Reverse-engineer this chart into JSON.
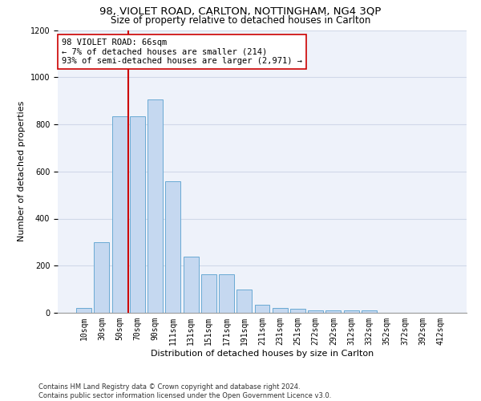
{
  "title1": "98, VIOLET ROAD, CARLTON, NOTTINGHAM, NG4 3QP",
  "title2": "Size of property relative to detached houses in Carlton",
  "xlabel": "Distribution of detached houses by size in Carlton",
  "ylabel": "Number of detached properties",
  "categories": [
    "10sqm",
    "30sqm",
    "50sqm",
    "70sqm",
    "90sqm",
    "111sqm",
    "131sqm",
    "151sqm",
    "171sqm",
    "191sqm",
    "211sqm",
    "231sqm",
    "251sqm",
    "272sqm",
    "292sqm",
    "312sqm",
    "332sqm",
    "352sqm",
    "372sqm",
    "392sqm",
    "412sqm"
  ],
  "values": [
    22,
    300,
    835,
    835,
    905,
    560,
    240,
    165,
    165,
    100,
    35,
    22,
    18,
    10,
    10,
    10,
    10,
    0,
    0,
    0,
    0
  ],
  "bar_color": "#c5d8f0",
  "bar_edge_color": "#6aaad4",
  "vline_x": 2.5,
  "vline_color": "#cc0000",
  "annotation_text": "98 VIOLET ROAD: 66sqm\n← 7% of detached houses are smaller (214)\n93% of semi-detached houses are larger (2,971) →",
  "annotation_box_color": "#ffffff",
  "annotation_box_edge_color": "#cc0000",
  "ylim": [
    0,
    1200
  ],
  "yticks": [
    0,
    200,
    400,
    600,
    800,
    1000,
    1200
  ],
  "grid_color": "#d0d8e8",
  "bg_color": "#eef2fa",
  "footer1": "Contains HM Land Registry data © Crown copyright and database right 2024.",
  "footer2": "Contains public sector information licensed under the Open Government Licence v3.0.",
  "title1_fontsize": 9.5,
  "title2_fontsize": 8.5,
  "xlabel_fontsize": 8,
  "ylabel_fontsize": 8,
  "tick_fontsize": 7,
  "annotation_fontsize": 7.5,
  "footer_fontsize": 6
}
